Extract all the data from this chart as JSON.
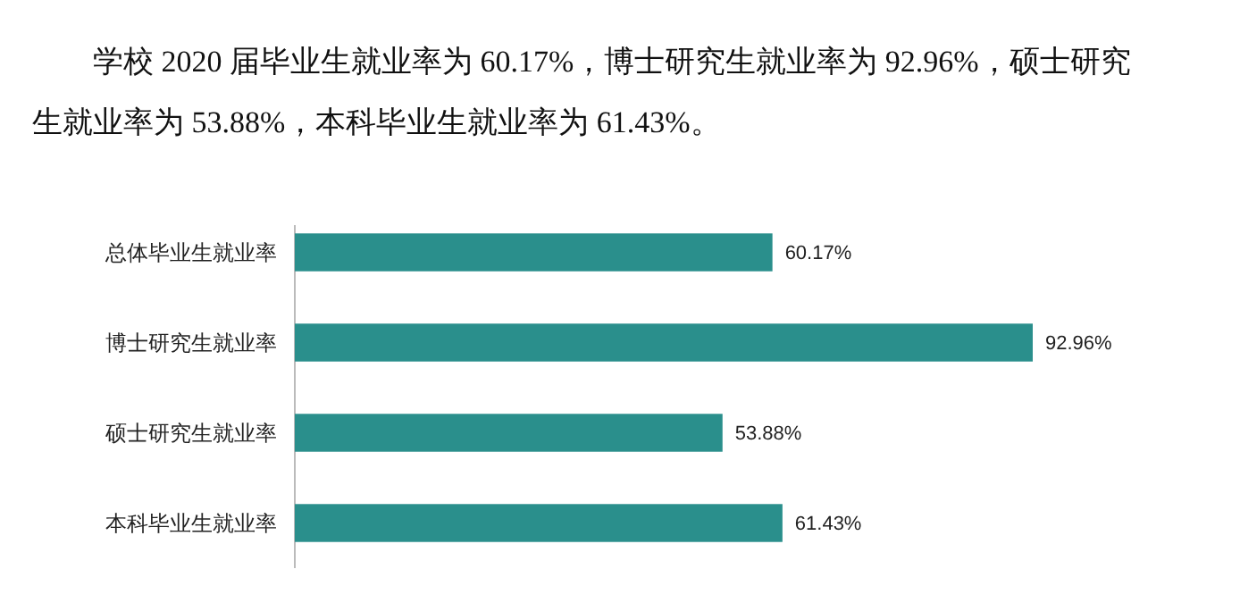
{
  "chart_data": {
    "type": "bar",
    "orientation": "horizontal",
    "title": "学校 2020 届毕业生就业率为 60.17%，博士研究生就业率为 92.96%，硕士研究生就业率为 53.88%，本科毕业生就业率为 61.43%。",
    "categories": [
      "总体毕业生就业率",
      "博士研究生就业率",
      "硕士研究生就业率",
      "本科毕业生就业率"
    ],
    "values": [
      60.17,
      92.96,
      53.88,
      61.43
    ],
    "value_labels": [
      "60.17%",
      "92.96%",
      "53.88%",
      "61.43%"
    ],
    "color": "#2a8f8c"
  }
}
